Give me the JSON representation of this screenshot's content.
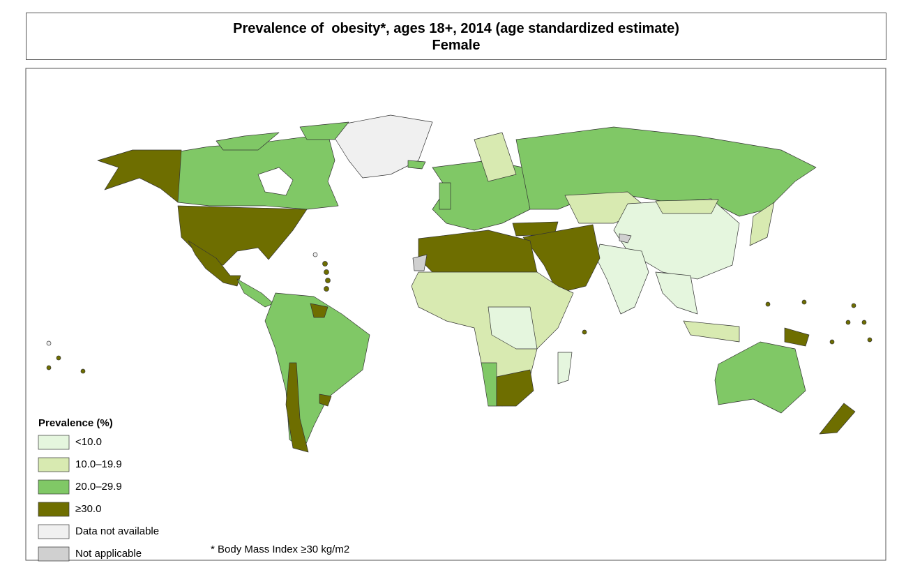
{
  "header": {
    "title": "Prevalence of  obesity*, ages 18+, 2014 (age standardized estimate)",
    "subtitle": "Female"
  },
  "legend": {
    "title": "Prevalence (%)",
    "items": [
      {
        "label": "<10.0",
        "color": "#e5f6de"
      },
      {
        "label": "10.0–19.9",
        "color": "#d8eab1"
      },
      {
        "label": "20.0–29.9",
        "color": "#80c866"
      },
      {
        "label": "≥30.0",
        "color": "#6e6e00"
      },
      {
        "label": "Data not available",
        "color": "#f0f0f0"
      },
      {
        "label": "Not applicable",
        "color": "#d0d0d0"
      }
    ]
  },
  "footnote": "* Body Mass Index ≥30 kg/m2"
}
